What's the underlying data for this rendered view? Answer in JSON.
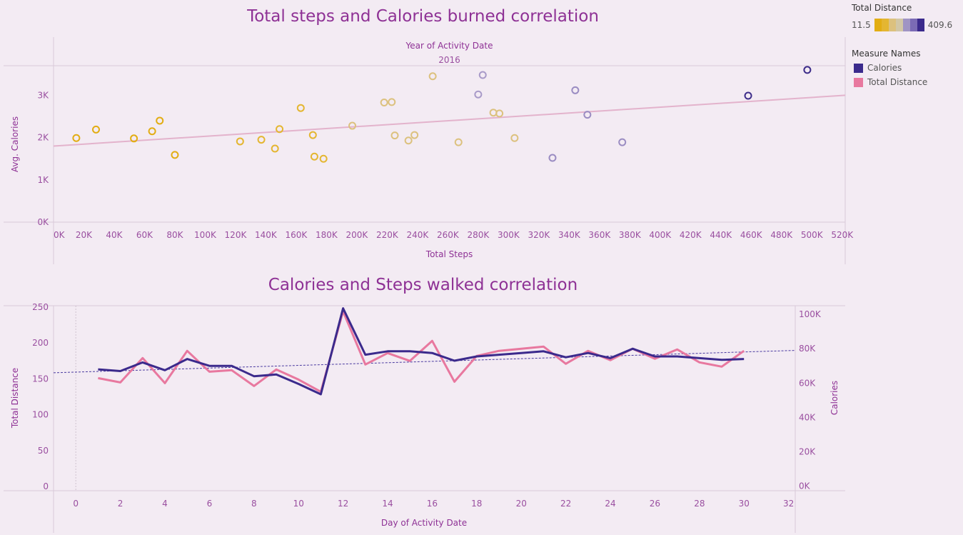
{
  "chart_data": [
    {
      "type": "scatter",
      "title": "Total steps and Calories burned correlation",
      "header_label": "Year of Activity Date",
      "header_value": "2016",
      "xlabel": "Total Steps",
      "ylabel": "Avg. Calories",
      "xlim": [
        0,
        522000
      ],
      "ylim": [
        0,
        3700
      ],
      "x_ticks": [
        "0K",
        "20K",
        "40K",
        "60K",
        "80K",
        "100K",
        "120K",
        "140K",
        "160K",
        "180K",
        "200K",
        "220K",
        "240K",
        "260K",
        "280K",
        "300K",
        "320K",
        "340K",
        "360K",
        "380K",
        "400K",
        "420K",
        "440K",
        "460K",
        "480K",
        "500K",
        "520K"
      ],
      "y_ticks": [
        "0K",
        "1K",
        "2K",
        "3K"
      ],
      "trendline": [
        [
          0,
          1800
        ],
        [
          522000,
          3000
        ]
      ],
      "points": [
        {
          "x": 15000,
          "y": 1990,
          "color": "#e2ad13"
        },
        {
          "x": 28000,
          "y": 2190,
          "color": "#e2ad13"
        },
        {
          "x": 53000,
          "y": 1980,
          "color": "#e2ad13"
        },
        {
          "x": 65000,
          "y": 2150,
          "color": "#e2ad13"
        },
        {
          "x": 70000,
          "y": 2400,
          "color": "#e2ad13"
        },
        {
          "x": 80000,
          "y": 1590,
          "color": "#e2ad13"
        },
        {
          "x": 123000,
          "y": 1910,
          "color": "#e4b631"
        },
        {
          "x": 137000,
          "y": 1950,
          "color": "#e4b631"
        },
        {
          "x": 146000,
          "y": 1740,
          "color": "#e4b631"
        },
        {
          "x": 149000,
          "y": 2200,
          "color": "#e4b631"
        },
        {
          "x": 163000,
          "y": 2700,
          "color": "#e4b631"
        },
        {
          "x": 171000,
          "y": 2060,
          "color": "#e4b631"
        },
        {
          "x": 172000,
          "y": 1550,
          "color": "#e4b631"
        },
        {
          "x": 178000,
          "y": 1500,
          "color": "#e4b631"
        },
        {
          "x": 197000,
          "y": 2280,
          "color": "#dcc17e"
        },
        {
          "x": 218000,
          "y": 2830,
          "color": "#dcc17e"
        },
        {
          "x": 223000,
          "y": 2840,
          "color": "#dcc17e"
        },
        {
          "x": 225000,
          "y": 2050,
          "color": "#dcc17e"
        },
        {
          "x": 234000,
          "y": 1930,
          "color": "#dcc17e"
        },
        {
          "x": 238000,
          "y": 2060,
          "color": "#dcc17e"
        },
        {
          "x": 250000,
          "y": 3450,
          "color": "#dcc17e"
        },
        {
          "x": 267000,
          "y": 1890,
          "color": "#dcc17e"
        },
        {
          "x": 280000,
          "y": 3020,
          "color": "#a89ac8"
        },
        {
          "x": 283000,
          "y": 3480,
          "color": "#a89ac8"
        },
        {
          "x": 290000,
          "y": 2590,
          "color": "#dcc17e"
        },
        {
          "x": 294000,
          "y": 2570,
          "color": "#dcc17e"
        },
        {
          "x": 304000,
          "y": 1990,
          "color": "#dcc17e"
        },
        {
          "x": 329000,
          "y": 1520,
          "color": "#9a8cc2"
        },
        {
          "x": 344000,
          "y": 3120,
          "color": "#9a8cc2"
        },
        {
          "x": 352000,
          "y": 2540,
          "color": "#9a8cc2"
        },
        {
          "x": 375000,
          "y": 1890,
          "color": "#9a8cc2"
        },
        {
          "x": 458000,
          "y": 2990,
          "color": "#3d2d8a"
        },
        {
          "x": 497000,
          "y": 3600,
          "color": "#3d2d8a"
        }
      ]
    },
    {
      "type": "line",
      "title": "Calories and Steps walked correlation",
      "xlabel": "Day of Activity Date",
      "ylabel_left": "Total Distance",
      "ylabel_right": "Calories",
      "xlim": [
        -1,
        32.3
      ],
      "ylim_left": [
        -6,
        252
      ],
      "ylim_right": [
        -2600,
        105000
      ],
      "x_ticks": [
        "0",
        "2",
        "4",
        "6",
        "8",
        "10",
        "12",
        "14",
        "16",
        "18",
        "20",
        "22",
        "24",
        "26",
        "28",
        "30",
        "32"
      ],
      "y_ticks_left": [
        "0",
        "50",
        "100",
        "150",
        "200",
        "250"
      ],
      "y_ticks_right": [
        "0K",
        "20K",
        "40K",
        "60K",
        "80K",
        "100K"
      ],
      "trendline_right": [
        [
          -1,
          66000
        ],
        [
          32.3,
          79000
        ]
      ],
      "series": [
        {
          "name": "Total Distance",
          "axis": "left",
          "color": "#e8789f",
          "x": [
            1,
            2,
            3,
            4,
            5,
            6,
            7,
            8,
            9,
            10,
            11,
            12,
            13,
            14,
            15,
            16,
            17,
            18,
            19,
            20,
            21,
            22,
            23,
            24,
            25,
            26,
            27,
            28,
            29,
            30
          ],
          "values": [
            151,
            145,
            179,
            144,
            189,
            160,
            162,
            140,
            163,
            149,
            132,
            244,
            170,
            186,
            175,
            203,
            146,
            182,
            189,
            192,
            195,
            171,
            189,
            176,
            192,
            178,
            191,
            173,
            167,
            189
          ]
        },
        {
          "name": "Calories",
          "axis": "right",
          "color": "#3b2a8c",
          "x": [
            1,
            2,
            3,
            4,
            5,
            6,
            7,
            8,
            9,
            10,
            11,
            12,
            13,
            14,
            15,
            16,
            17,
            18,
            19,
            20,
            21,
            22,
            23,
            24,
            25,
            26,
            27,
            28,
            29,
            30
          ],
          "values": [
            68000,
            67000,
            72000,
            67500,
            74000,
            70000,
            70000,
            64000,
            65000,
            59500,
            53500,
            103500,
            76500,
            78500,
            78500,
            77500,
            73000,
            75500,
            76500,
            77500,
            78500,
            75000,
            77500,
            74500,
            80000,
            75500,
            75500,
            74500,
            73500,
            74000
          ]
        }
      ]
    }
  ],
  "legend": {
    "gradient_title": "Total Distance",
    "gradient_min": "11.5",
    "gradient_max": "409.6",
    "gradient_colors": [
      "#e2ad13",
      "#e4b631",
      "#dcc17e",
      "#d2c7a6",
      "#9f94c4",
      "#7b6bb5",
      "#3b2a8c"
    ],
    "measure_title": "Measure Names",
    "items": [
      {
        "label": "Calories",
        "color": "#3b2a8c"
      },
      {
        "label": "Total Distance",
        "color": "#e8789f"
      }
    ]
  }
}
